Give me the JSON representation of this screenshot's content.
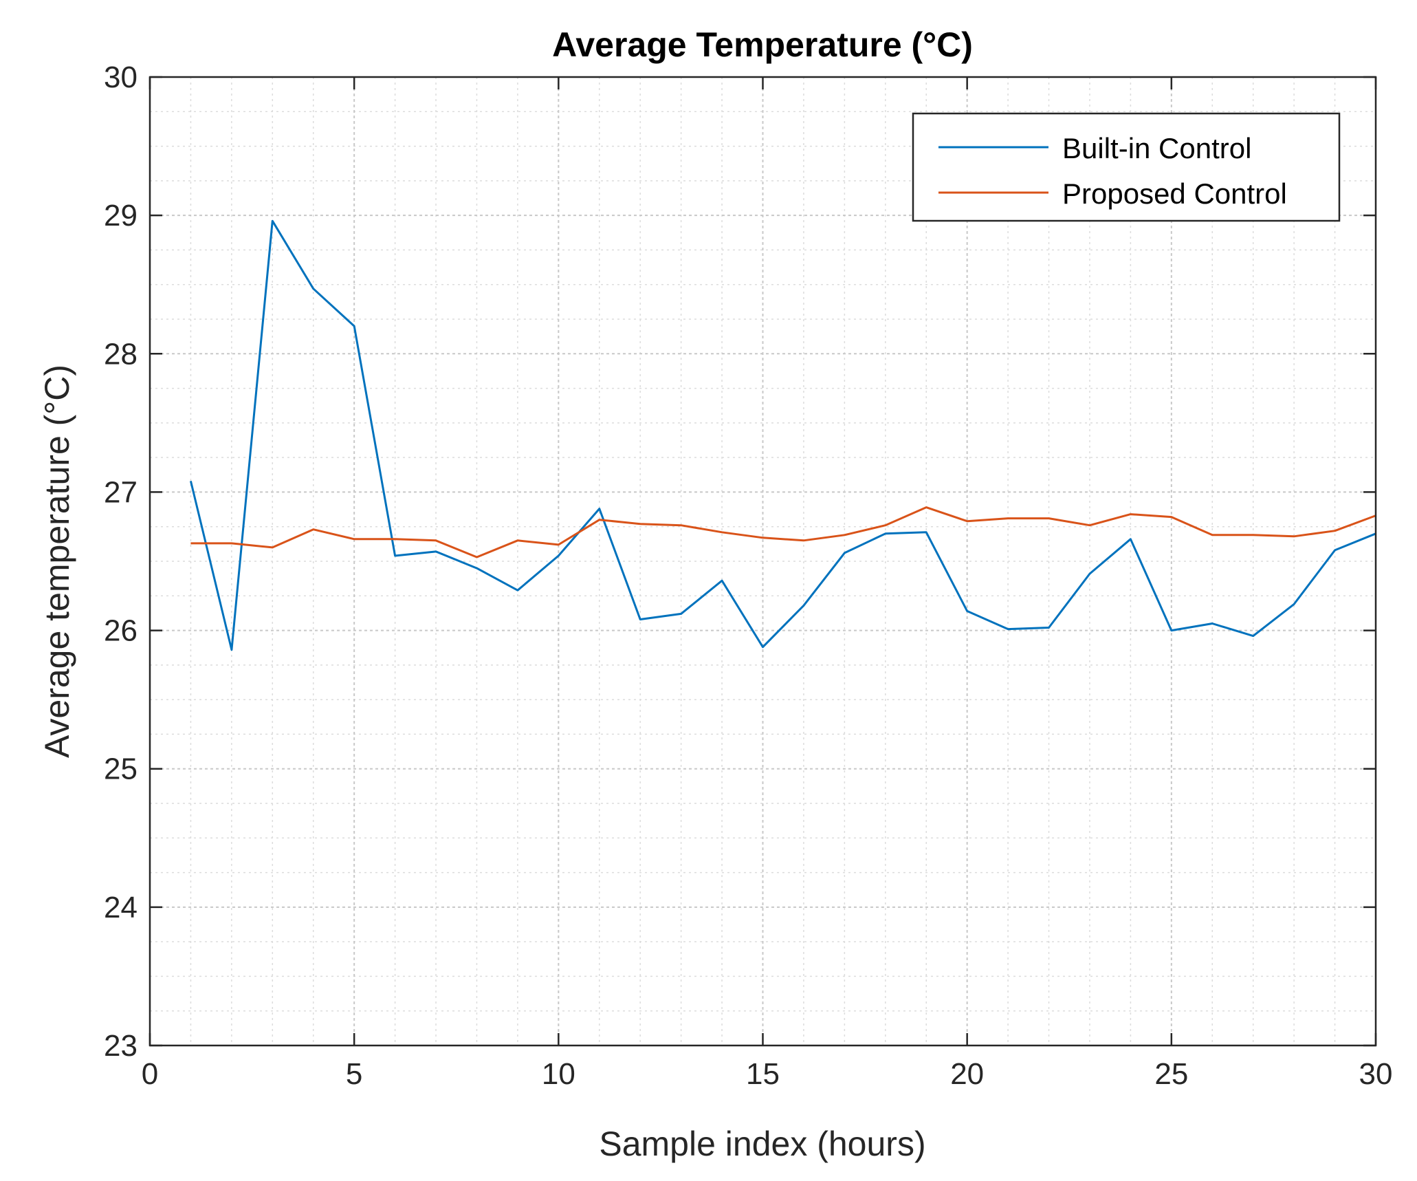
{
  "chart_data": {
    "type": "line",
    "title": "Average Temperature (°C)",
    "xlabel": "Sample index (hours)",
    "ylabel": "Average temperature (°C)",
    "xlim": [
      0,
      30
    ],
    "ylim": [
      23,
      30
    ],
    "xticks": [
      0,
      5,
      10,
      15,
      20,
      25,
      30
    ],
    "yticks": [
      23,
      24,
      25,
      26,
      27,
      28,
      29,
      30
    ],
    "xtick_labels": [
      "0",
      "5",
      "10",
      "15",
      "20",
      "25",
      "30"
    ],
    "ytick_labels": [
      "23",
      "24",
      "25",
      "26",
      "27",
      "28",
      "29",
      "30"
    ],
    "grid": true,
    "minor_grid": true,
    "legend_position": "top-right",
    "x": [
      1,
      2,
      3,
      4,
      5,
      6,
      7,
      8,
      9,
      10,
      11,
      12,
      13,
      14,
      15,
      16,
      17,
      18,
      19,
      20,
      21,
      22,
      23,
      24,
      25,
      26,
      27,
      28,
      29,
      30
    ],
    "series": [
      {
        "name": "Built-in Control",
        "color": "#0072BD",
        "values": [
          27.08,
          25.86,
          28.96,
          28.47,
          28.2,
          26.54,
          26.57,
          26.45,
          26.29,
          26.54,
          26.88,
          26.08,
          26.12,
          26.36,
          25.88,
          26.18,
          26.56,
          26.7,
          26.71,
          26.14,
          26.01,
          26.02,
          26.41,
          26.66,
          26.0,
          26.05,
          25.96,
          26.19,
          26.58,
          26.7
        ]
      },
      {
        "name": "Proposed Control",
        "color": "#D95319",
        "values": [
          26.63,
          26.63,
          26.6,
          26.73,
          26.66,
          26.66,
          26.65,
          26.53,
          26.65,
          26.62,
          26.8,
          26.77,
          26.76,
          26.71,
          26.67,
          26.65,
          26.69,
          26.76,
          26.89,
          26.79,
          26.81,
          26.81,
          26.76,
          26.84,
          26.82,
          26.69,
          26.69,
          26.68,
          26.72,
          26.83
        ]
      }
    ]
  }
}
